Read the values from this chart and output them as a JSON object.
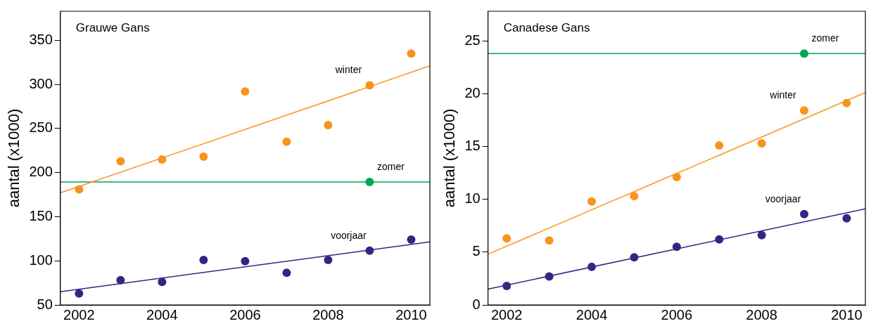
{
  "chart_data": [
    {
      "type": "scatter",
      "title": "Grauwe Gans",
      "ylabel": "aantal (x1000)",
      "xlim": [
        2001.55,
        2010.45
      ],
      "xticks": [
        2002,
        2004,
        2006,
        2008,
        2010
      ],
      "ylim": [
        50,
        383
      ],
      "yticks": [
        50,
        100,
        150,
        200,
        250,
        300,
        350
      ],
      "grid": false,
      "legend": false,
      "marker": "circle",
      "series": [
        {
          "name": "winter",
          "color": "#f7941d",
          "x": [
            2002,
            2003,
            2004,
            2005,
            2006,
            2007,
            2008,
            2009,
            2010
          ],
          "values": [
            181,
            213,
            215,
            218,
            292,
            235,
            254,
            299,
            335
          ]
        },
        {
          "type": "line",
          "color": "#f7941d",
          "marker": "none",
          "x": [
            2001.55,
            2010.45
          ],
          "values": [
            177,
            321
          ]
        },
        {
          "name": "zomer",
          "color": "#00a651",
          "x": [
            2009
          ],
          "values": [
            189.5
          ]
        },
        {
          "name": "voorjaar",
          "color": "#312783",
          "x": [
            2002,
            2003,
            2004,
            2005,
            2006,
            2007,
            2008,
            2009,
            2010
          ],
          "values": [
            63,
            78,
            76,
            101,
            99.5,
            86.5,
            101,
            111.5,
            124
          ]
        },
        {
          "type": "line",
          "color": "#312783",
          "marker": "none",
          "x": [
            2001.55,
            2010.45
          ],
          "values": [
            65,
            121.5
          ]
        }
      ],
      "ref_lines": [
        {
          "axis": "y",
          "value": 189.5,
          "color": "#00a651"
        }
      ]
    },
    {
      "type": "scatter",
      "title": "Canadese Gans",
      "ylabel": "aantal (x1000)",
      "xlim": [
        2001.56,
        2010.44
      ],
      "xticks": [
        2002,
        2004,
        2006,
        2008,
        2010
      ],
      "ylim": [
        0,
        27.8
      ],
      "yticks": [
        0,
        5,
        10,
        15,
        20,
        25
      ],
      "grid": false,
      "legend": false,
      "marker": "circle",
      "series": [
        {
          "name": "winter",
          "color": "#f7941d",
          "x": [
            2002,
            2003,
            2004,
            2005,
            2006,
            2007,
            2008,
            2009,
            2010
          ],
          "values": [
            6.3,
            6.1,
            9.8,
            10.3,
            12.1,
            15.1,
            15.3,
            18.4,
            19.1
          ]
        },
        {
          "type": "line",
          "color": "#f7941d",
          "marker": "none",
          "x": [
            2001.56,
            2010.44
          ],
          "values": [
            4.8,
            20.1
          ]
        },
        {
          "name": "zomer",
          "color": "#00a651",
          "x": [
            2009
          ],
          "values": [
            23.8
          ]
        },
        {
          "name": "voorjaar",
          "color": "#312783",
          "x": [
            2002,
            2003,
            2004,
            2005,
            2006,
            2007,
            2008,
            2009,
            2010
          ],
          "values": [
            1.8,
            2.7,
            3.6,
            4.5,
            5.5,
            6.2,
            6.6,
            8.6,
            8.2
          ]
        },
        {
          "type": "line",
          "color": "#312783",
          "marker": "none",
          "x": [
            2001.56,
            2010.44
          ],
          "values": [
            1.5,
            9.1
          ]
        }
      ],
      "ref_lines": [
        {
          "axis": "y",
          "value": 23.8,
          "color": "#00a651"
        }
      ]
    }
  ]
}
